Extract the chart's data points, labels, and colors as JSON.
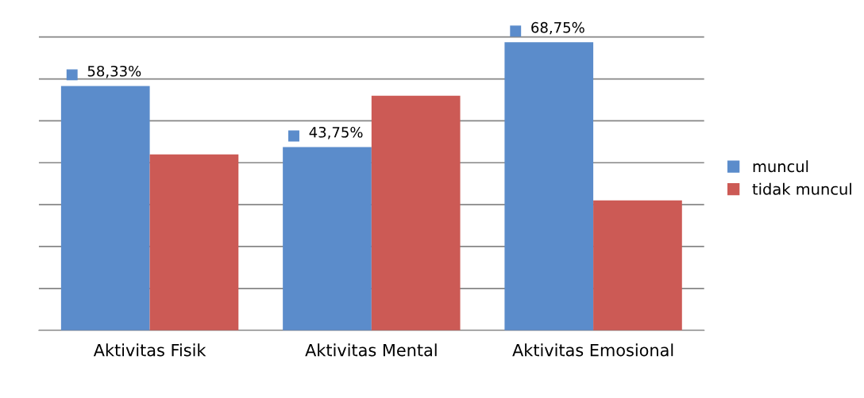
{
  "chart_data": {
    "type": "bar",
    "categories": [
      "Aktivitas Fisik",
      "Aktivitas Mental",
      "Aktivitas Emosional"
    ],
    "series": [
      {
        "name": "muncul",
        "color": "#5b8ccb",
        "values": [
          58.33,
          43.75,
          68.75
        ],
        "value_labels": [
          "58,33%",
          "43,75%",
          "68,75%"
        ]
      },
      {
        "name": "tidak muncul",
        "color": "#cc5a55",
        "values": [
          42,
          56,
          31
        ]
      }
    ],
    "grid": "y",
    "legend": "right",
    "tick_labels": "x"
  }
}
